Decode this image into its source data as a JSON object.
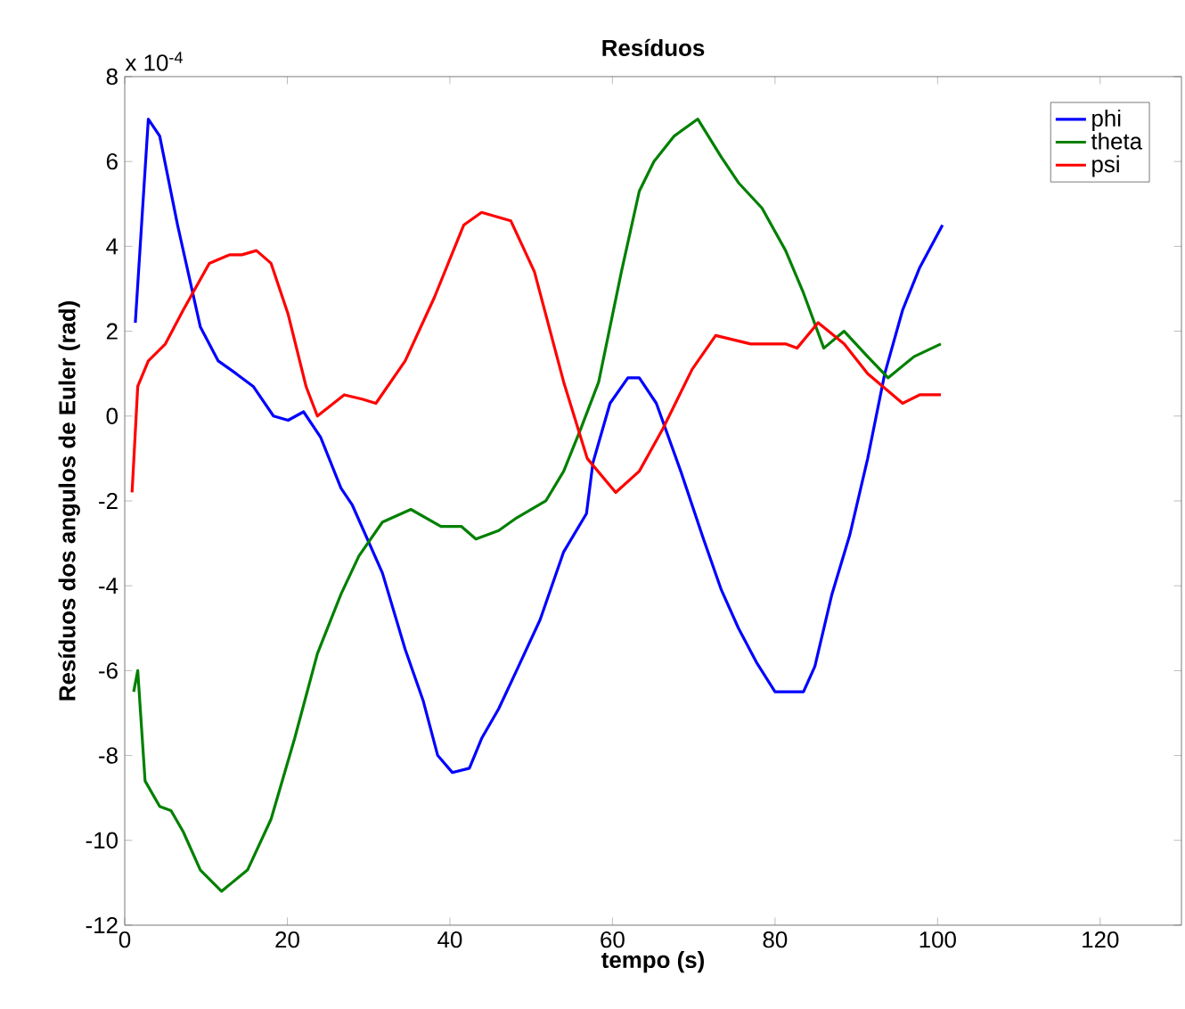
{
  "chart_data": {
    "type": "line",
    "title": "Resíduos",
    "xlabel": "tempo (s)",
    "ylabel": "Resíduos dos angulos de Euler (rad)",
    "annotations": [
      "x 10$^{-4}$"
    ],
    "xlim": [
      0,
      130
    ],
    "ylim": [
      -12,
      8
    ],
    "xticks": [
      0,
      20,
      40,
      60,
      80,
      100,
      120
    ],
    "yticks": [
      -12,
      -10,
      -8,
      -6,
      -4,
      -2,
      0,
      2,
      4,
      6,
      8
    ],
    "legend": "top right",
    "grid": false,
    "marker": "none",
    "line_style": "solid",
    "series": [
      {
        "name": "phi",
        "color": "#0000ff",
        "x": [
          1.3,
          2.9,
          4.3,
          6.5,
          9.3,
          11.5,
          13.7,
          15.8,
          18.3,
          20.1,
          22,
          24.1,
          26.6,
          28,
          31.7,
          34.5,
          36.7,
          38.5,
          40.3,
          42.4,
          43.9,
          46,
          48.2,
          51.1,
          54,
          56.8,
          57.6,
          59.7,
          61.9,
          63.3,
          65.4,
          68.4,
          71.2,
          73.4,
          75.5,
          77.7,
          80,
          83.5,
          84.9,
          87,
          89.2,
          91.4,
          93.5,
          95.7,
          97.8,
          100.6
        ],
        "values": [
          2.2,
          7.0,
          6.6,
          4.5,
          2.1,
          1.3,
          1.0,
          0.7,
          0.0,
          -0.1,
          0.1,
          -0.5,
          -1.7,
          -2.1,
          -3.7,
          -5.5,
          -6.7,
          -8.0,
          -8.4,
          -8.3,
          -7.6,
          -6.9,
          -6.0,
          -4.8,
          -3.2,
          -2.3,
          -1.1,
          0.3,
          0.9,
          0.9,
          0.3,
          -1.3,
          -2.9,
          -4.1,
          -5.0,
          -5.8,
          -6.5,
          -6.5,
          -5.9,
          -4.2,
          -2.8,
          -1.0,
          1.0,
          2.5,
          3.5,
          4.5
        ]
      },
      {
        "name": "theta",
        "color": "#008000",
        "x": [
          1.1,
          1.6,
          2.5,
          4.3,
          5.7,
          7.2,
          9.3,
          11.9,
          15.1,
          18,
          20.9,
          23.7,
          26.6,
          28.8,
          31.7,
          35.2,
          38.9,
          41.4,
          43.2,
          46,
          48.2,
          51.8,
          54,
          56.1,
          58.3,
          61.1,
          63.3,
          65.1,
          67.6,
          70.5,
          73.4,
          75.5,
          78.4,
          81.3,
          83.5,
          86,
          88.5,
          91.4,
          93.9,
          97.1,
          100.4
        ],
        "values": [
          -6.5,
          -6.0,
          -8.6,
          -9.2,
          -9.3,
          -9.8,
          -10.7,
          -11.2,
          -10.7,
          -9.5,
          -7.6,
          -5.6,
          -4.2,
          -3.3,
          -2.5,
          -2.2,
          -2.6,
          -2.6,
          -2.9,
          -2.7,
          -2.4,
          -2.0,
          -1.3,
          -0.3,
          0.8,
          3.4,
          5.3,
          6.0,
          6.6,
          7.0,
          6.1,
          5.5,
          4.9,
          3.9,
          2.9,
          1.6,
          2.0,
          1.4,
          0.9,
          1.4,
          1.7
        ]
      },
      {
        "name": "psi",
        "color": "#ff0000",
        "x": [
          0.9,
          1.6,
          2.9,
          5,
          7.2,
          10.4,
          12.9,
          14.4,
          16.2,
          18,
          20.1,
          22.3,
          23.7,
          27,
          29.2,
          30.9,
          34.5,
          38.1,
          41.7,
          43.9,
          47.5,
          50.4,
          54,
          56.9,
          60.4,
          63.3,
          66.2,
          69.8,
          72.7,
          77,
          81.3,
          82.7,
          85.3,
          88.5,
          91.4,
          95.7,
          97.8,
          100.4
        ],
        "values": [
          -1.8,
          0.7,
          1.3,
          1.7,
          2.5,
          3.6,
          3.8,
          3.8,
          3.9,
          3.6,
          2.4,
          0.7,
          0.0,
          0.5,
          0.4,
          0.3,
          1.3,
          2.8,
          4.5,
          4.8,
          4.6,
          3.4,
          0.8,
          -1.0,
          -1.8,
          -1.3,
          -0.3,
          1.1,
          1.9,
          1.7,
          1.7,
          1.6,
          2.2,
          1.7,
          1.0,
          0.3,
          0.5,
          0.5
        ]
      }
    ]
  }
}
